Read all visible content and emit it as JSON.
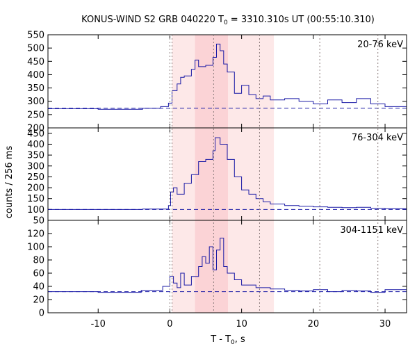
{
  "chart_data": {
    "type": "line",
    "title": {
      "prefix": "KONUS-WIND S2 GRB 040220 T",
      "sub": "0",
      "suffix": " = 3310.310s UT (00:55:10.310)"
    },
    "xlabel": {
      "prefix": "T - T",
      "sub": "0",
      "suffix": ", s"
    },
    "ylabel": "counts / 256 ms",
    "xlim": [
      -17,
      33
    ],
    "x_ticks": [
      {
        "label": "-10",
        "value": -10
      },
      {
        "label": "0",
        "value": 0
      },
      {
        "label": "10",
        "value": 10
      },
      {
        "label": "20",
        "value": 20
      },
      {
        "label": "30",
        "value": 30
      }
    ],
    "vertical_markers": [
      0.0,
      0.3,
      6.1,
      12.5,
      20.9,
      29.0
    ],
    "shaded_intervals": [
      {
        "from": 0.3,
        "to": 14.5,
        "color": "#fde8e8"
      },
      {
        "from": 3.5,
        "to": 8.1,
        "color": "#fbd3d6"
      }
    ],
    "line_color": "#1a1aa6",
    "panels": [
      {
        "name": "20-76 keV",
        "ylim": [
          200,
          550
        ],
        "y_ticks": [
          "200",
          "250",
          "300",
          "350",
          "400",
          "450",
          "500",
          "550"
        ],
        "background_level": 274,
        "series": {
          "name": "20-76 keV",
          "time_points": [
            -17,
            -10,
            -3.8,
            -1.3,
            -0.2,
            0.3,
            1.0,
            1.5,
            2.0,
            3.0,
            3.5,
            4.0,
            5.0,
            6.0,
            6.5,
            7.0,
            7.5,
            8.0,
            9.0,
            10.0,
            11.0,
            12.0,
            13.0,
            14.0,
            16.0,
            18.0,
            20.0,
            22.0,
            24.0,
            26.0,
            28.0,
            30.0,
            33.0
          ],
          "counts": [
            272,
            270,
            274,
            280,
            293,
            340,
            365,
            390,
            395,
            420,
            455,
            430,
            435,
            465,
            515,
            490,
            440,
            410,
            330,
            360,
            325,
            310,
            320,
            305,
            310,
            300,
            290,
            305,
            295,
            310,
            290,
            280,
            275
          ]
        }
      },
      {
        "name": "76-304 keV",
        "ylim": [
          50,
          475
        ],
        "y_ticks": [
          "50",
          "100",
          "150",
          "200",
          "250",
          "300",
          "350",
          "400",
          "450"
        ],
        "background_level": 100,
        "series": {
          "name": "76-304 keV",
          "time_points": [
            -17,
            -10,
            -3.8,
            -0.2,
            0.1,
            0.5,
            1.0,
            2.0,
            3.0,
            4.0,
            5.0,
            6.0,
            6.3,
            7.0,
            8.0,
            9.0,
            10.0,
            11.0,
            12.0,
            13.0,
            14.0,
            16.0,
            18.0,
            20.0,
            22.0,
            24.0,
            26.0,
            28.0,
            30.0,
            33.0
          ],
          "counts": [
            100,
            100,
            102,
            118,
            180,
            200,
            170,
            220,
            260,
            320,
            330,
            370,
            430,
            400,
            330,
            250,
            190,
            170,
            150,
            135,
            125,
            118,
            115,
            112,
            110,
            108,
            110,
            106,
            104,
            102
          ]
        }
      },
      {
        "name": "304-1151 keV",
        "ylim": [
          0,
          140
        ],
        "y_ticks": [
          "0",
          "20",
          "40",
          "60",
          "80",
          "100",
          "120"
        ],
        "background_level": 32,
        "series": {
          "name": "304-1151 keV",
          "time_points": [
            -17,
            -10,
            -4.0,
            -1.0,
            0.0,
            0.5,
            1.0,
            1.5,
            2.0,
            3.0,
            4.0,
            4.5,
            5.0,
            5.5,
            6.0,
            6.5,
            7.0,
            7.5,
            8.0,
            9.0,
            10.0,
            12.0,
            14.0,
            16.0,
            18.0,
            20.0,
            22.0,
            24.0,
            26.0,
            28.0,
            30.0,
            33.0
          ],
          "counts": [
            32,
            31,
            34,
            40,
            55,
            45,
            38,
            60,
            42,
            55,
            70,
            85,
            75,
            100,
            65,
            95,
            113,
            70,
            60,
            50,
            42,
            38,
            36,
            34,
            33,
            35,
            32,
            34,
            33,
            31,
            35,
            33
          ]
        }
      }
    ]
  }
}
